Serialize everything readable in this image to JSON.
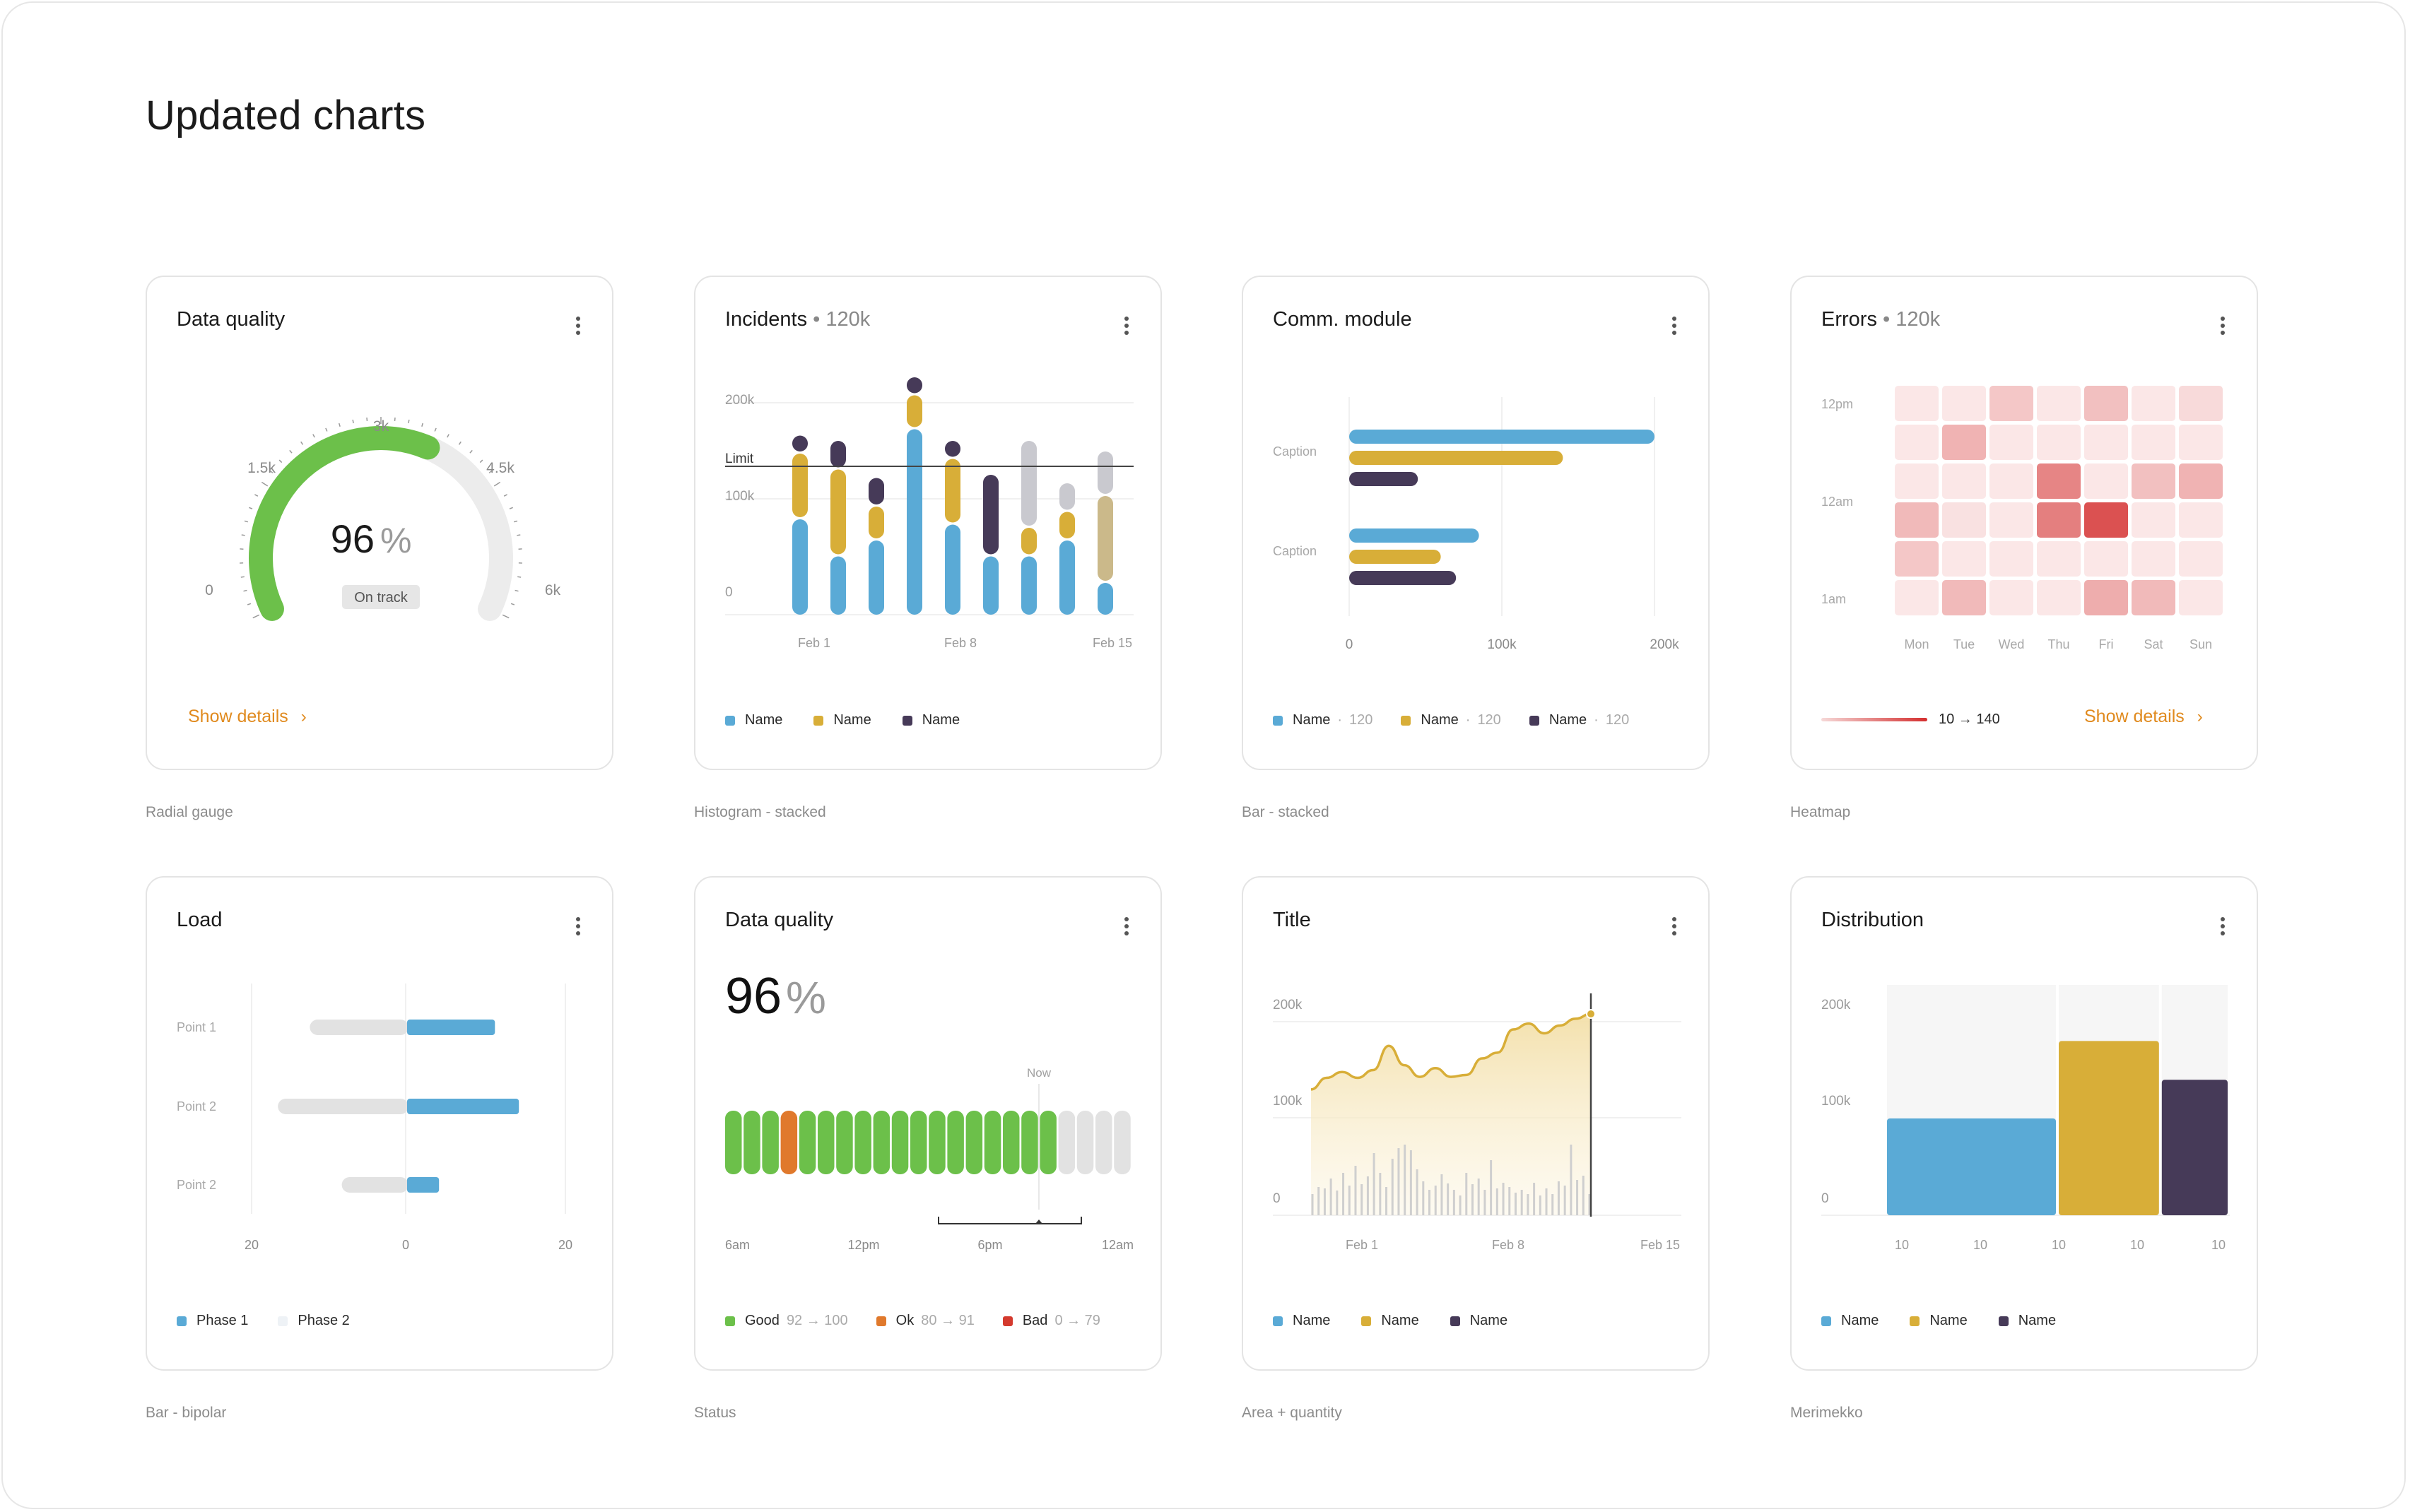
{
  "page": {
    "title": "Updated charts"
  },
  "colors": {
    "blue": "#5aaad6",
    "yellow": "#d8ae38",
    "dark": "#463a58",
    "green": "#6cc04a",
    "orange": "#e0792c",
    "red": "#d43a2e",
    "accent": "#e08a1e",
    "grey": "#e2e2e2"
  },
  "cards": [
    {
      "title": "Data quality",
      "caption": "Radial gauge",
      "show_details": "Show details"
    },
    {
      "title": "Incidents",
      "subtitle": "120k",
      "caption": "Histogram - stacked"
    },
    {
      "title": "Comm. module",
      "caption": "Bar - stacked"
    },
    {
      "title": "Errors",
      "subtitle": "120k",
      "caption": "Heatmap",
      "show_details": "Show details"
    },
    {
      "title": "Load",
      "caption": "Bar - bipolar"
    },
    {
      "title": "Data quality",
      "caption": "Status"
    },
    {
      "title": "Title",
      "caption": "Area + quantity"
    },
    {
      "title": "Distribution",
      "caption": "Merimekko"
    }
  ],
  "chart_data": [
    {
      "type": "gauge",
      "value": 96,
      "unit": "%",
      "status": "On track",
      "fill_fraction": 0.6,
      "tick_labels": [
        "0",
        "1.5k",
        "3k",
        "4.5k",
        "6k"
      ]
    },
    {
      "type": "bar",
      "stacked": true,
      "y_tick_labels": [
        "200k",
        "100k",
        "0"
      ],
      "ylim": [
        0,
        200000
      ],
      "limit_label": "Limit",
      "limit_value": 140000,
      "x_tick_labels": [
        "Feb 1",
        "Feb 8",
        "Feb 15"
      ],
      "series": [
        {
          "name": "Name",
          "color": "#5aaad6",
          "values": [
            90000,
            55000,
            70000,
            175000,
            85000,
            55000,
            55000,
            70000,
            30000
          ]
        },
        {
          "name": "Name",
          "color": "#d8ae38",
          "values": [
            60000,
            80000,
            30000,
            30000,
            60000,
            0,
            25000,
            25000,
            0
          ]
        },
        {
          "name": "Name",
          "color": "#463a58",
          "values": [
            15000,
            25000,
            25000,
            15000,
            15000,
            75000,
            0,
            0,
            0
          ]
        }
      ],
      "extra_values_grey": [
        0,
        0,
        0,
        0,
        0,
        0,
        80000,
        25000,
        40000
      ],
      "extra_values_tan": [
        0,
        0,
        0,
        0,
        0,
        0,
        0,
        0,
        80000
      ]
    },
    {
      "type": "bar",
      "orientation": "horizontal",
      "categories": [
        "Caption",
        "Caption"
      ],
      "x_tick_labels": [
        "0",
        "100k",
        "200k"
      ],
      "xlim": [
        0,
        200000
      ],
      "series": [
        {
          "name": "Name",
          "value_label": "120",
          "color": "#5aaad6",
          "values": [
            200000,
            85000
          ]
        },
        {
          "name": "Name",
          "value_label": "120",
          "color": "#d8ae38",
          "values": [
            140000,
            60000
          ]
        },
        {
          "name": "Name",
          "value_label": "120",
          "color": "#463a58",
          "values": [
            45000,
            70000
          ]
        }
      ]
    },
    {
      "type": "heatmap",
      "y_tick_labels": [
        "12pm",
        "12am",
        "1am"
      ],
      "x_tick_labels": [
        "Mon",
        "Tue",
        "Wed",
        "Thu",
        "Fri",
        "Sat",
        "Sun"
      ],
      "scale_label": "10 → 140",
      "range": [
        10,
        140
      ],
      "values": [
        [
          15,
          15,
          40,
          15,
          45,
          15,
          25
        ],
        [
          15,
          55,
          15,
          15,
          15,
          15,
          15
        ],
        [
          15,
          15,
          15,
          90,
          15,
          45,
          55
        ],
        [
          50,
          20,
          15,
          95,
          130,
          15,
          15
        ],
        [
          40,
          15,
          15,
          15,
          15,
          15,
          15
        ],
        [
          15,
          50,
          15,
          15,
          60,
          50,
          15
        ]
      ]
    },
    {
      "type": "bar",
      "orientation": "horizontal-bipolar",
      "categories": [
        "Point 1",
        "Point 2",
        "Point 2"
      ],
      "x_tick_labels": [
        "20",
        "0",
        "20"
      ],
      "xlim": [
        -20,
        20
      ],
      "series": [
        {
          "name": "Phase 1",
          "color": "#5aaad6",
          "values": [
            11,
            14,
            4
          ]
        },
        {
          "name": "Phase 2",
          "color": "#e2e2e2",
          "values": [
            12,
            16,
            8
          ]
        }
      ]
    },
    {
      "type": "status",
      "value": 96,
      "unit": "%",
      "now_label": "Now",
      "x_tick_labels": [
        "6am",
        "12pm",
        "6pm",
        "12am"
      ],
      "cells": [
        "good",
        "good",
        "good",
        "ok",
        "good",
        "good",
        "good",
        "good",
        "good",
        "good",
        "good",
        "good",
        "good",
        "good",
        "good",
        "good",
        "good",
        "good",
        "empty",
        "empty",
        "empty",
        "empty"
      ],
      "legend": [
        {
          "name": "Good",
          "range": "92 → 100",
          "color": "#6cc04a"
        },
        {
          "name": "Ok",
          "range": "80 → 91",
          "color": "#e0792c"
        },
        {
          "name": "Bad",
          "range": "0 → 79",
          "color": "#d43a2e"
        }
      ]
    },
    {
      "type": "area",
      "y_tick_labels": [
        "200k",
        "100k",
        "0"
      ],
      "ylim": [
        0,
        200000
      ],
      "x_tick_labels": [
        "Feb 1",
        "Feb 8",
        "Feb 15"
      ],
      "area_values": [
        130000,
        142000,
        148000,
        142000,
        150000,
        175000,
        155000,
        143000,
        152000,
        143000,
        145000,
        162000,
        168000,
        192000,
        198000,
        188000,
        196000,
        203000,
        208000
      ],
      "quantity_values": [
        30,
        40,
        38,
        52,
        35,
        60,
        42,
        70,
        44,
        55,
        88,
        60,
        40,
        80,
        95,
        100,
        92,
        65,
        48,
        36,
        42,
        58,
        45,
        36,
        28,
        60,
        44,
        52,
        36,
        78,
        38,
        46,
        40,
        32,
        36,
        30,
        46,
        28,
        38,
        30,
        48,
        42,
        100,
        50,
        56,
        30
      ],
      "legend": [
        "Name",
        "Name",
        "Name"
      ]
    },
    {
      "type": "mekko",
      "y_tick_labels": [
        "200k",
        "100k",
        "0"
      ],
      "ylim": [
        0,
        200000
      ],
      "x_tick_labels": [
        "10",
        "10",
        "10",
        "10",
        "10"
      ],
      "series": [
        {
          "name": "Name",
          "color": "#5aaad6",
          "width": 10,
          "value": 100000
        },
        {
          "name": "Name",
          "color": "#d8ae38",
          "width": 6,
          "value": 180000
        },
        {
          "name": "Name",
          "color": "#463a58",
          "width": 4,
          "value": 140000
        }
      ]
    }
  ]
}
